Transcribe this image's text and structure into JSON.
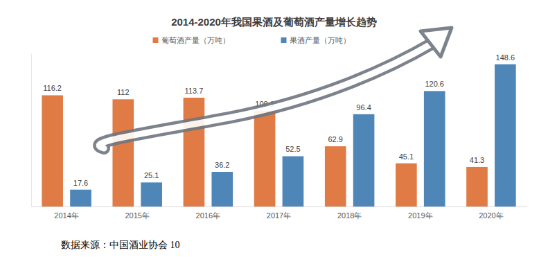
{
  "chart_data": {
    "type": "bar",
    "title": "2014-2020年我国果酒及葡萄酒产量增长趋势",
    "categories": [
      "2014年",
      "2015年",
      "2016年",
      "2017年",
      "2018年",
      "2019年",
      "2020年"
    ],
    "series": [
      {
        "name": "葡萄酒产量（万吨）",
        "color": "#e07b45",
        "values": [
          116.2,
          112,
          113.7,
          100.1,
          62.9,
          45.1,
          41.3
        ]
      },
      {
        "name": "果酒产量（万吨）",
        "color": "#4f86b8",
        "values": [
          17.6,
          25.1,
          36.2,
          52.5,
          96.4,
          120.6,
          148.6
        ]
      }
    ],
    "ylim": [
      0,
      160
    ],
    "tick_labels": "x",
    "data_labels": true,
    "legend": "top",
    "source": "数据来源：中国酒业协会 10"
  }
}
